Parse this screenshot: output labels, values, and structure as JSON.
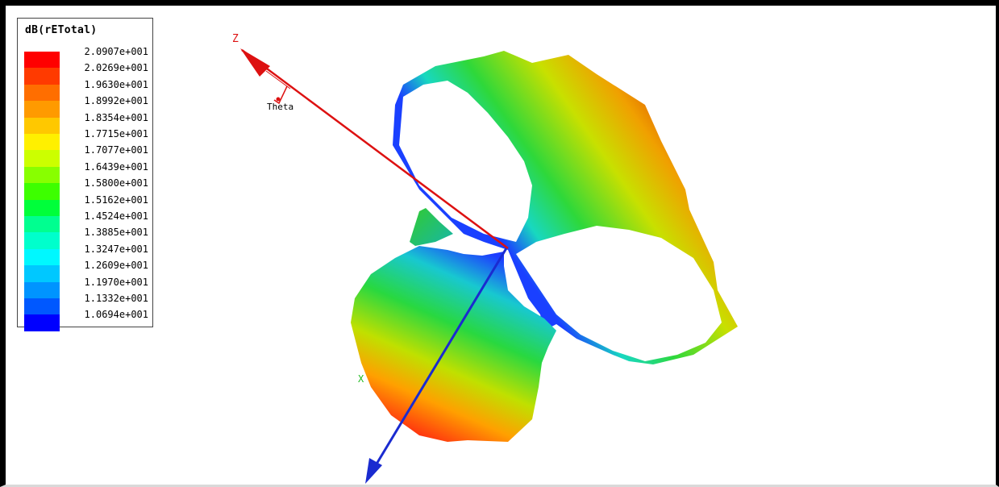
{
  "legend": {
    "title": "dB(rETotal)",
    "ticks": [
      "2.0907e+001",
      "2.0269e+001",
      "1.9630e+001",
      "1.8992e+001",
      "1.8354e+001",
      "1.7715e+001",
      "1.7077e+001",
      "1.6439e+001",
      "1.5800e+001",
      "1.5162e+001",
      "1.4524e+001",
      "1.3885e+001",
      "1.3247e+001",
      "1.2609e+001",
      "1.1970e+001",
      "1.1332e+001",
      "1.0694e+001"
    ],
    "colors": [
      "#ff0000",
      "#ff3a00",
      "#ff6e00",
      "#ff9a00",
      "#ffc800",
      "#fff000",
      "#ccff00",
      "#88ff00",
      "#3dff00",
      "#00ff3a",
      "#00ff90",
      "#00ffcc",
      "#00f8ff",
      "#00c8ff",
      "#0094ff",
      "#0058ff",
      "#0000ff"
    ]
  },
  "axes": {
    "z_label": "Z",
    "x_label": "X",
    "theta_label": "Theta",
    "z_color": "#dd1111",
    "y_color": "#1a2bd0",
    "x_color": "#22bb22"
  }
}
